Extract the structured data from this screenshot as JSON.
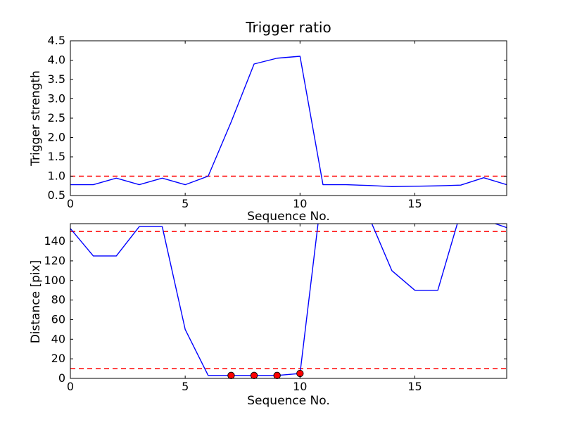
{
  "chart_data": [
    {
      "type": "line",
      "title": "Trigger ratio",
      "xlabel": "Sequence No.",
      "ylabel": "Trigger strength",
      "xlim": [
        0,
        19
      ],
      "ylim": [
        0.5,
        4.5
      ],
      "grid": false,
      "xticks": [
        0,
        5,
        10,
        15
      ],
      "xtick_labels": [
        "0",
        "5",
        "10",
        "15"
      ],
      "yticks": [
        0.5,
        1.0,
        1.5,
        2.0,
        2.5,
        3.0,
        3.5,
        4.0,
        4.5
      ],
      "ytick_labels": [
        "0.5",
        "1.0",
        "1.5",
        "2.0",
        "2.5",
        "3.0",
        "3.5",
        "4.0",
        "4.5"
      ],
      "x": [
        0,
        1,
        2,
        3,
        4,
        5,
        6,
        7,
        8,
        9,
        10,
        11,
        12,
        13,
        14,
        15,
        16,
        17,
        18,
        19
      ],
      "y": [
        0.78,
        0.78,
        0.95,
        0.78,
        0.95,
        0.78,
        1.0,
        2.4,
        3.9,
        4.05,
        4.1,
        0.78,
        0.78,
        0.76,
        0.73,
        0.74,
        0.75,
        0.77,
        0.96,
        0.78
      ],
      "line_color": "#0000ff",
      "thresholds": [
        {
          "y": 1.0,
          "color": "#ff0000",
          "style": "dashed"
        }
      ]
    },
    {
      "type": "line",
      "title": "",
      "xlabel": "Sequence No.",
      "ylabel": "Distance [pix]",
      "xlim": [
        0,
        19
      ],
      "ylim": [
        0,
        158
      ],
      "grid": false,
      "xticks": [
        0,
        5,
        10,
        15
      ],
      "xtick_labels": [
        "0",
        "5",
        "10",
        "15"
      ],
      "yticks": [
        0,
        20,
        40,
        60,
        80,
        100,
        120,
        140
      ],
      "ytick_labels": [
        "0",
        "20",
        "40",
        "60",
        "80",
        "100",
        "120",
        "140"
      ],
      "x": [
        0,
        1,
        2,
        3,
        4,
        5,
        6,
        7,
        8,
        9,
        10,
        11,
        12,
        13,
        14,
        15,
        16,
        17,
        18,
        19
      ],
      "y": [
        153,
        125,
        125,
        155,
        155,
        50,
        3,
        3,
        3,
        3,
        5,
        200,
        200,
        165,
        110,
        90,
        90,
        170,
        162,
        154
      ],
      "line_color": "#0000ff",
      "thresholds": [
        {
          "y": 150,
          "color": "#ff0000",
          "style": "dashed"
        },
        {
          "y": 10,
          "color": "#ff0000",
          "style": "dashed"
        }
      ],
      "markers": {
        "shape": "circle",
        "color": "#ff0000",
        "x": [
          7,
          8,
          9,
          10
        ],
        "y": [
          3,
          3,
          3,
          5
        ]
      }
    }
  ],
  "style": {
    "axes_color": "#000000",
    "background": "#ffffff"
  }
}
